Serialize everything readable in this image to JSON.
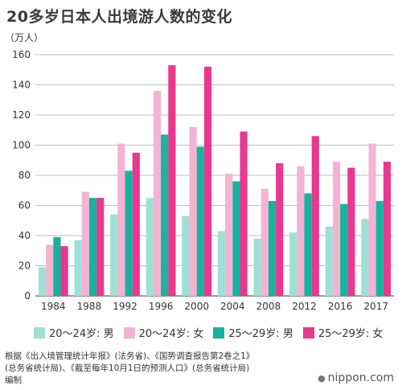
{
  "title": "20多岁日本人出境游人数的变化",
  "unit_label": "（万人）",
  "source": {
    "line1": "根据《出入境管理统计年报》(法务省)、《国势调查报告第2卷之1》",
    "line2": "(总务省统计局)、《截至每年10月1日的预测人口》(总务省统计局)",
    "line3": "编制"
  },
  "brand": {
    "text": "nippon.com",
    "icon": "speech-bubble-icon"
  },
  "chart_data": {
    "type": "bar",
    "categories": [
      "1984",
      "1988",
      "1992",
      "1996",
      "2000",
      "2004",
      "2008",
      "2012",
      "2016",
      "2017"
    ],
    "series": [
      {
        "name": "20～24岁: 男",
        "color": "#9fe0d4",
        "values": [
          19,
          37,
          54,
          65,
          53,
          43,
          38,
          42,
          46,
          51
        ]
      },
      {
        "name": "20～24岁: 女",
        "color": "#f4b3d2",
        "values": [
          34,
          69,
          101,
          136,
          112,
          81,
          71,
          86,
          89,
          101
        ]
      },
      {
        "name": "25～29岁: 男",
        "color": "#17b3a0",
        "values": [
          39,
          65,
          83,
          107,
          99,
          76,
          63,
          68,
          61,
          63
        ]
      },
      {
        "name": "25～29岁: 女",
        "color": "#e8388f",
        "values": [
          33,
          65,
          95,
          153,
          152,
          109,
          88,
          106,
          85,
          89
        ]
      }
    ],
    "ylim": [
      0,
      160
    ],
    "yticks": [
      0,
      20,
      40,
      60,
      80,
      100,
      120,
      140,
      160
    ],
    "grid": true,
    "legend_position": "bottom"
  }
}
